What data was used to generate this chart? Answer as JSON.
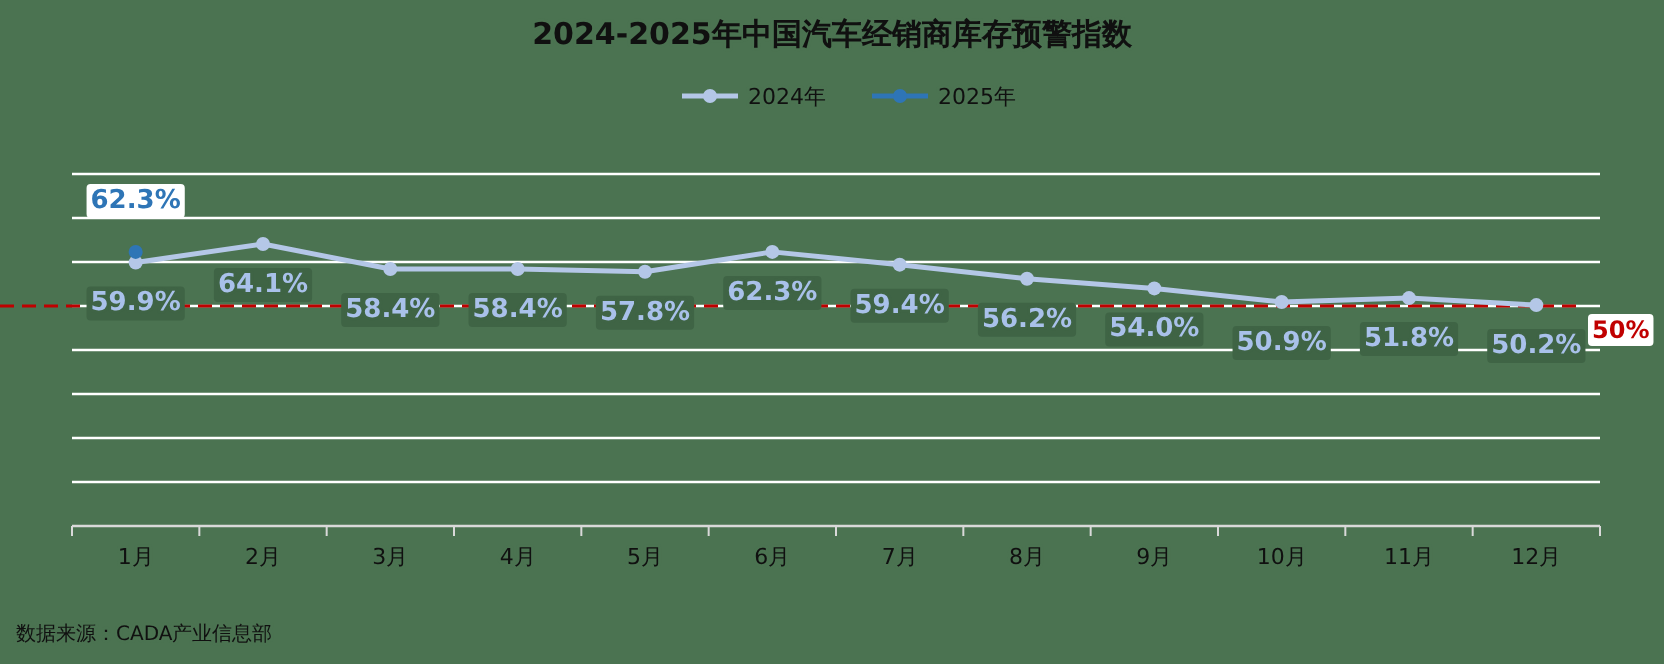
{
  "chart_data": {
    "type": "line",
    "title": "2024-2025年中国汽车经销商库存预警指数",
    "categories": [
      "1月",
      "2月",
      "3月",
      "4月",
      "5月",
      "6月",
      "7月",
      "8月",
      "9月",
      "10月",
      "11月",
      "12月"
    ],
    "series": [
      {
        "name": "2024年",
        "color": "#b4c7e7",
        "values": [
          59.9,
          64.1,
          58.4,
          58.4,
          57.8,
          62.3,
          59.4,
          56.2,
          54.0,
          50.9,
          51.8,
          50.2
        ],
        "value_labels": [
          "59.9%",
          "64.1%",
          "58.4%",
          "58.4%",
          "57.8%",
          "62.3%",
          "59.4%",
          "56.2%",
          "54.0%",
          "50.9%",
          "51.8%",
          "50.2%"
        ]
      },
      {
        "name": "2025年",
        "color": "#2e75b6",
        "values": [
          62.3,
          null,
          null,
          null,
          null,
          null,
          null,
          null,
          null,
          null,
          null,
          null
        ],
        "value_labels": [
          "62.3%",
          null,
          null,
          null,
          null,
          null,
          null,
          null,
          null,
          null,
          null,
          null
        ]
      }
    ],
    "ylim": [
      0,
      80
    ],
    "yticks": [
      {
        "value": 0,
        "label": null
      },
      {
        "value": 10,
        "label": null
      },
      {
        "value": 20,
        "label": null
      },
      {
        "value": 30,
        "label": null
      },
      {
        "value": 40,
        "label": null
      },
      {
        "value": 50,
        "label": null
      },
      {
        "value": 60,
        "label": null
      },
      {
        "value": 70,
        "label": null
      },
      {
        "value": 80,
        "label": null
      }
    ],
    "tick_labels": "x",
    "grid": "y",
    "legend": "top",
    "marker": "circle",
    "line_style": "solid",
    "ref_lines": [
      {
        "axis": "y",
        "value": 50,
        "label": "50%",
        "color": "#c00000",
        "line_style": "dashed"
      }
    ],
    "annotations": [
      "数据来源：CADA产业信息部"
    ]
  }
}
